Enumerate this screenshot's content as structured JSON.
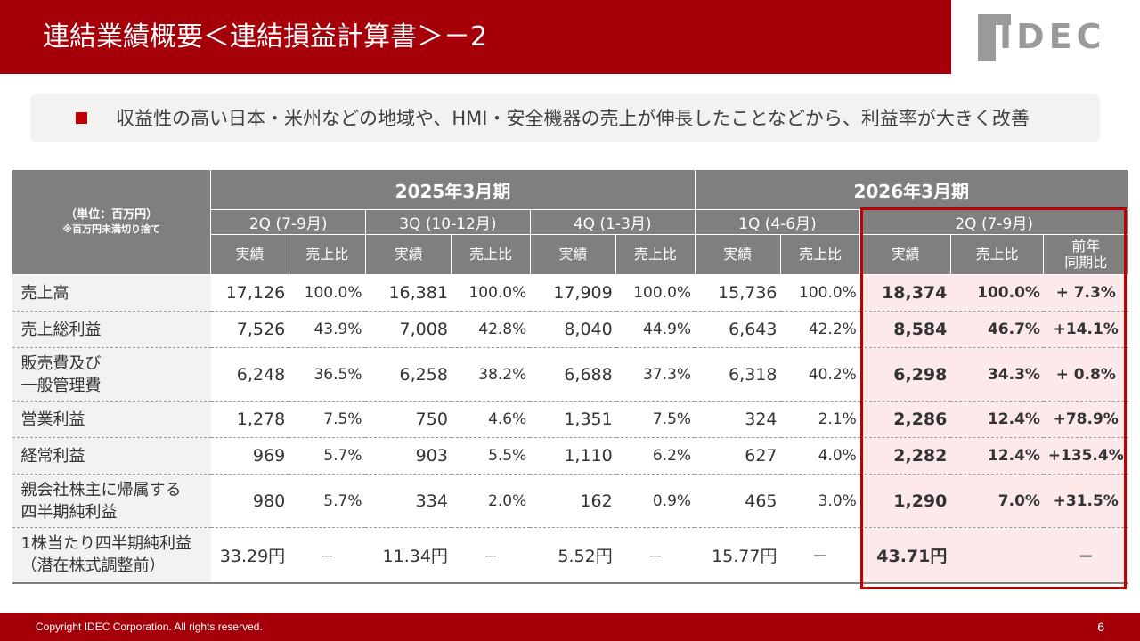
{
  "title": "連結業績概要＜連結損益計算書＞－2",
  "logo_text": "IDEC",
  "summary": "収益性の高い日本・米州などの地域や、HMI・安全機器の売上が伸長したことなどから、利益率が大きく改善",
  "table": {
    "unit_label": "（単位：百万円）",
    "unit_note": "※百万円未満切り捨て",
    "periods": [
      "2025年3月期",
      "2026年3月期"
    ],
    "quarters": [
      "2Q (7-9月)",
      "3Q (10-12月)",
      "4Q (1-3月)",
      "1Q (4-6月)",
      "2Q (7-9月)"
    ],
    "col_actual": "実績",
    "col_ratio": "売上比",
    "col_yoy_1": "前年",
    "col_yoy_2": "同期比",
    "rows": [
      {
        "label1": "売上高",
        "label2": "",
        "cells": [
          "17,126",
          "100.0%",
          "16,381",
          "100.0%",
          "17,909",
          "100.0%",
          "15,736",
          "100.0%",
          "18,374",
          "100.0%",
          "+ 7.3%"
        ]
      },
      {
        "label1": "売上総利益",
        "label2": "",
        "cells": [
          "7,526",
          "43.9%",
          "7,008",
          "42.8%",
          "8,040",
          "44.9%",
          "6,643",
          "42.2%",
          "8,584",
          "46.7%",
          "+14.1%"
        ]
      },
      {
        "label1": "販売費及び",
        "label2": "一般管理費",
        "cells": [
          "6,248",
          "36.5%",
          "6,258",
          "38.2%",
          "6,688",
          "37.3%",
          "6,318",
          "40.2%",
          "6,298",
          "34.3%",
          "+ 0.8%"
        ]
      },
      {
        "label1": "営業利益",
        "label2": "",
        "cells": [
          "1,278",
          "7.5%",
          "750",
          "4.6%",
          "1,351",
          "7.5%",
          "324",
          "2.1%",
          "2,286",
          "12.4%",
          "+78.9%"
        ]
      },
      {
        "label1": "経常利益",
        "label2": "",
        "cells": [
          "969",
          "5.7%",
          "903",
          "5.5%",
          "1,110",
          "6.2%",
          "627",
          "4.0%",
          "2,282",
          "12.4%",
          "+135.4%"
        ]
      },
      {
        "label1": "親会社株主に帰属する",
        "label2": "四半期純利益",
        "cells": [
          "980",
          "5.7%",
          "334",
          "2.0%",
          "162",
          "0.9%",
          "465",
          "3.0%",
          "1,290",
          "7.0%",
          "+31.5%"
        ]
      },
      {
        "label1": "1株当たり四半期純利益",
        "label2": "（潜在株式調整前）",
        "cells": [
          "33.29円",
          "－",
          "11.34円",
          "－",
          "5.52円",
          "－",
          "15.77円",
          "ー",
          "43.71円",
          "",
          "－"
        ]
      }
    ]
  },
  "footer": {
    "copyright": "Copyright IDEC Corporation. All rights reserved.",
    "page": "6"
  }
}
